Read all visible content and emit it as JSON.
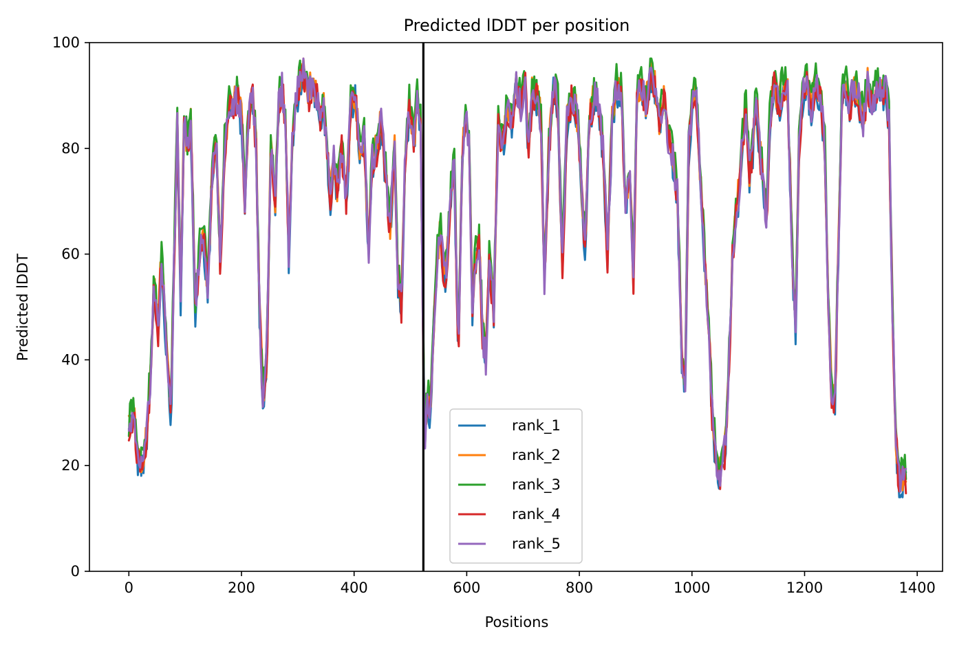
{
  "chart_data": {
    "type": "line",
    "title": "Predicted lDDT per position",
    "xlabel": "Positions",
    "ylabel": "Predicted lDDT",
    "xlim": [
      -70,
      1445
    ],
    "ylim": [
      0,
      100
    ],
    "x_ticks": [
      0,
      200,
      400,
      600,
      800,
      1000,
      1200,
      1400
    ],
    "y_ticks": [
      0,
      20,
      40,
      60,
      80,
      100
    ],
    "grid": false,
    "legend_position": "lower center",
    "chain_break": 523,
    "max_position": 1380,
    "series": [
      {
        "name": "rank_1",
        "color": "#1f77b4",
        "seed": 11,
        "offset": -1.0
      },
      {
        "name": "rank_2",
        "color": "#ff7f0e",
        "seed": 23,
        "offset": 0.5
      },
      {
        "name": "rank_3",
        "color": "#2ca02c",
        "seed": 37,
        "offset": 1.5
      },
      {
        "name": "rank_4",
        "color": "#d62728",
        "seed": 51,
        "offset": -0.5
      },
      {
        "name": "rank_5",
        "color": "#9467bd",
        "seed": 67,
        "offset": 0.0
      }
    ],
    "profile": [
      [
        0,
        27
      ],
      [
        8,
        30
      ],
      [
        15,
        22
      ],
      [
        22,
        20
      ],
      [
        30,
        24
      ],
      [
        38,
        36
      ],
      [
        45,
        55
      ],
      [
        52,
        45
      ],
      [
        58,
        60
      ],
      [
        64,
        48
      ],
      [
        70,
        36
      ],
      [
        75,
        30
      ],
      [
        80,
        58
      ],
      [
        86,
        84
      ],
      [
        92,
        52
      ],
      [
        98,
        85
      ],
      [
        104,
        80
      ],
      [
        110,
        85
      ],
      [
        118,
        50
      ],
      [
        125,
        60
      ],
      [
        132,
        64
      ],
      [
        140,
        54
      ],
      [
        148,
        75
      ],
      [
        155,
        82
      ],
      [
        162,
        58
      ],
      [
        170,
        80
      ],
      [
        178,
        88
      ],
      [
        186,
        88
      ],
      [
        194,
        90
      ],
      [
        200,
        85
      ],
      [
        206,
        70
      ],
      [
        212,
        85
      ],
      [
        220,
        90
      ],
      [
        226,
        80
      ],
      [
        232,
        50
      ],
      [
        238,
        32
      ],
      [
        245,
        40
      ],
      [
        252,
        80
      ],
      [
        260,
        70
      ],
      [
        266,
        88
      ],
      [
        272,
        92
      ],
      [
        278,
        85
      ],
      [
        284,
        60
      ],
      [
        290,
        80
      ],
      [
        296,
        88
      ],
      [
        302,
        92
      ],
      [
        310,
        95
      ],
      [
        318,
        90
      ],
      [
        326,
        92
      ],
      [
        334,
        90
      ],
      [
        340,
        85
      ],
      [
        346,
        88
      ],
      [
        352,
        80
      ],
      [
        358,
        70
      ],
      [
        364,
        78
      ],
      [
        370,
        72
      ],
      [
        378,
        80
      ],
      [
        386,
        70
      ],
      [
        394,
        88
      ],
      [
        402,
        90
      ],
      [
        410,
        80
      ],
      [
        418,
        82
      ],
      [
        426,
        60
      ],
      [
        432,
        78
      ],
      [
        440,
        80
      ],
      [
        448,
        85
      ],
      [
        456,
        75
      ],
      [
        464,
        65
      ],
      [
        472,
        80
      ],
      [
        478,
        55
      ],
      [
        484,
        50
      ],
      [
        490,
        75
      ],
      [
        498,
        88
      ],
      [
        506,
        80
      ],
      [
        512,
        90
      ],
      [
        518,
        85
      ],
      [
        525,
        24
      ],
      [
        530,
        33
      ],
      [
        535,
        30
      ],
      [
        542,
        48
      ],
      [
        548,
        60
      ],
      [
        554,
        65
      ],
      [
        560,
        55
      ],
      [
        566,
        60
      ],
      [
        572,
        72
      ],
      [
        578,
        76
      ],
      [
        585,
        40
      ],
      [
        592,
        78
      ],
      [
        598,
        86
      ],
      [
        604,
        82
      ],
      [
        610,
        50
      ],
      [
        616,
        60
      ],
      [
        622,
        62
      ],
      [
        628,
        45
      ],
      [
        634,
        40
      ],
      [
        640,
        58
      ],
      [
        648,
        50
      ],
      [
        656,
        85
      ],
      [
        664,
        80
      ],
      [
        672,
        88
      ],
      [
        680,
        85
      ],
      [
        688,
        92
      ],
      [
        696,
        88
      ],
      [
        704,
        92
      ],
      [
        710,
        80
      ],
      [
        716,
        90
      ],
      [
        724,
        90
      ],
      [
        732,
        85
      ],
      [
        738,
        55
      ],
      [
        746,
        80
      ],
      [
        754,
        92
      ],
      [
        762,
        88
      ],
      [
        770,
        58
      ],
      [
        778,
        85
      ],
      [
        786,
        90
      ],
      [
        794,
        88
      ],
      [
        802,
        78
      ],
      [
        810,
        60
      ],
      [
        818,
        85
      ],
      [
        826,
        90
      ],
      [
        834,
        88
      ],
      [
        842,
        80
      ],
      [
        850,
        60
      ],
      [
        858,
        85
      ],
      [
        866,
        92
      ],
      [
        874,
        90
      ],
      [
        882,
        70
      ],
      [
        890,
        75
      ],
      [
        896,
        55
      ],
      [
        902,
        90
      ],
      [
        910,
        92
      ],
      [
        918,
        88
      ],
      [
        926,
        94
      ],
      [
        934,
        92
      ],
      [
        942,
        85
      ],
      [
        950,
        90
      ],
      [
        958,
        82
      ],
      [
        966,
        78
      ],
      [
        974,
        72
      ],
      [
        982,
        40
      ],
      [
        988,
        35
      ],
      [
        994,
        80
      ],
      [
        1000,
        88
      ],
      [
        1008,
        90
      ],
      [
        1016,
        72
      ],
      [
        1022,
        60
      ],
      [
        1030,
        45
      ],
      [
        1036,
        30
      ],
      [
        1042,
        22
      ],
      [
        1048,
        18
      ],
      [
        1054,
        20
      ],
      [
        1060,
        24
      ],
      [
        1066,
        40
      ],
      [
        1072,
        60
      ],
      [
        1078,
        68
      ],
      [
        1084,
        72
      ],
      [
        1090,
        82
      ],
      [
        1096,
        88
      ],
      [
        1102,
        75
      ],
      [
        1108,
        80
      ],
      [
        1114,
        90
      ],
      [
        1120,
        80
      ],
      [
        1126,
        75
      ],
      [
        1132,
        65
      ],
      [
        1138,
        85
      ],
      [
        1146,
        92
      ],
      [
        1154,
        88
      ],
      [
        1162,
        92
      ],
      [
        1170,
        90
      ],
      [
        1178,
        60
      ],
      [
        1184,
        45
      ],
      [
        1190,
        80
      ],
      [
        1196,
        90
      ],
      [
        1204,
        92
      ],
      [
        1212,
        88
      ],
      [
        1220,
        92
      ],
      [
        1228,
        90
      ],
      [
        1236,
        80
      ],
      [
        1242,
        50
      ],
      [
        1248,
        34
      ],
      [
        1254,
        32
      ],
      [
        1260,
        60
      ],
      [
        1266,
        90
      ],
      [
        1272,
        92
      ],
      [
        1280,
        88
      ],
      [
        1288,
        92
      ],
      [
        1296,
        90
      ],
      [
        1304,
        85
      ],
      [
        1312,
        92
      ],
      [
        1320,
        88
      ],
      [
        1328,
        92
      ],
      [
        1336,
        90
      ],
      [
        1344,
        92
      ],
      [
        1350,
        85
      ],
      [
        1356,
        50
      ],
      [
        1362,
        25
      ],
      [
        1368,
        17
      ],
      [
        1374,
        17
      ],
      [
        1380,
        18
      ]
    ]
  }
}
